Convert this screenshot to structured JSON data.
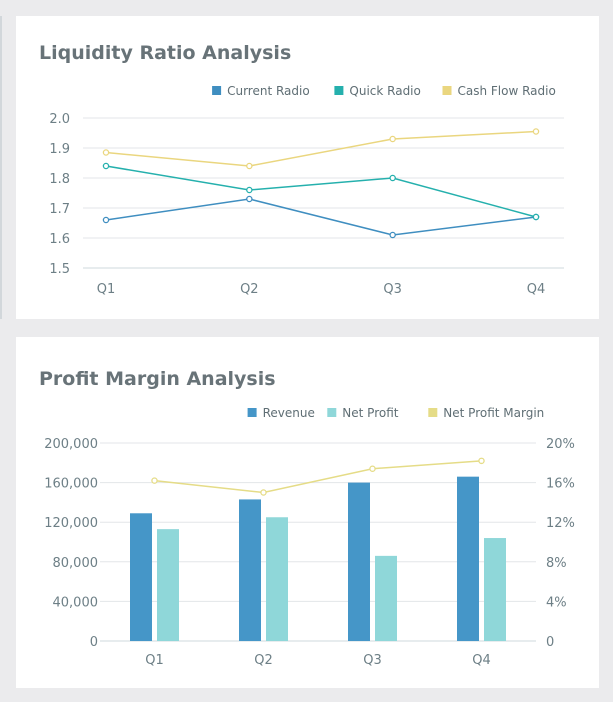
{
  "charts": [
    {
      "title": "Liquidity Ratio Analysis",
      "chart_data": {
        "type": "line",
        "categories": [
          "Q1",
          "Q2",
          "Q3",
          "Q4"
        ],
        "series": [
          {
            "name": "Current Radio",
            "values": [
              1.66,
              1.73,
              1.61,
              1.67
            ],
            "color": "#3f8ec0"
          },
          {
            "name": "Quick Radio",
            "values": [
              1.84,
              1.76,
              1.8,
              1.67
            ],
            "color": "#25b0ad"
          },
          {
            "name": "Cash Flow Radio",
            "values": [
              1.885,
              1.84,
              1.93,
              1.955
            ],
            "color": "#ead67f"
          }
        ],
        "ylim": [
          1.5,
          2.0
        ],
        "yticks": [
          "1.5",
          "1.6",
          "1.7",
          "1.8",
          "1.9",
          "2.0"
        ],
        "grid": true,
        "legend": "top-right"
      }
    },
    {
      "title": "Profit Margin Analysis",
      "chart_data": {
        "type": "bar",
        "categories": [
          "Q1",
          "Q2",
          "Q3",
          "Q4"
        ],
        "series": [
          {
            "name": "Revenue",
            "type": "bar",
            "axis": "left",
            "values": [
              129000,
              143000,
              160000,
              166000
            ],
            "color": "#4596c8"
          },
          {
            "name": "Net Profit",
            "type": "bar",
            "axis": "left",
            "values": [
              113000,
              125000,
              86000,
              104000
            ],
            "color": "#8fd7d9"
          },
          {
            "name": "Net Profit Margin",
            "type": "line",
            "axis": "right",
            "values": [
              16.2,
              15.0,
              17.4,
              18.2
            ],
            "color": "#e5dc87"
          }
        ],
        "ylim_left": [
          0,
          200000
        ],
        "yticks_left": [
          "0",
          "40,000",
          "80,000",
          "120,000",
          "160,000",
          "200,000"
        ],
        "ylim_right": [
          0,
          20
        ],
        "yticks_right": [
          "0",
          "4%",
          "8%",
          "12%",
          "16%",
          "20%"
        ],
        "grid": true,
        "legend": "top-right"
      }
    }
  ]
}
